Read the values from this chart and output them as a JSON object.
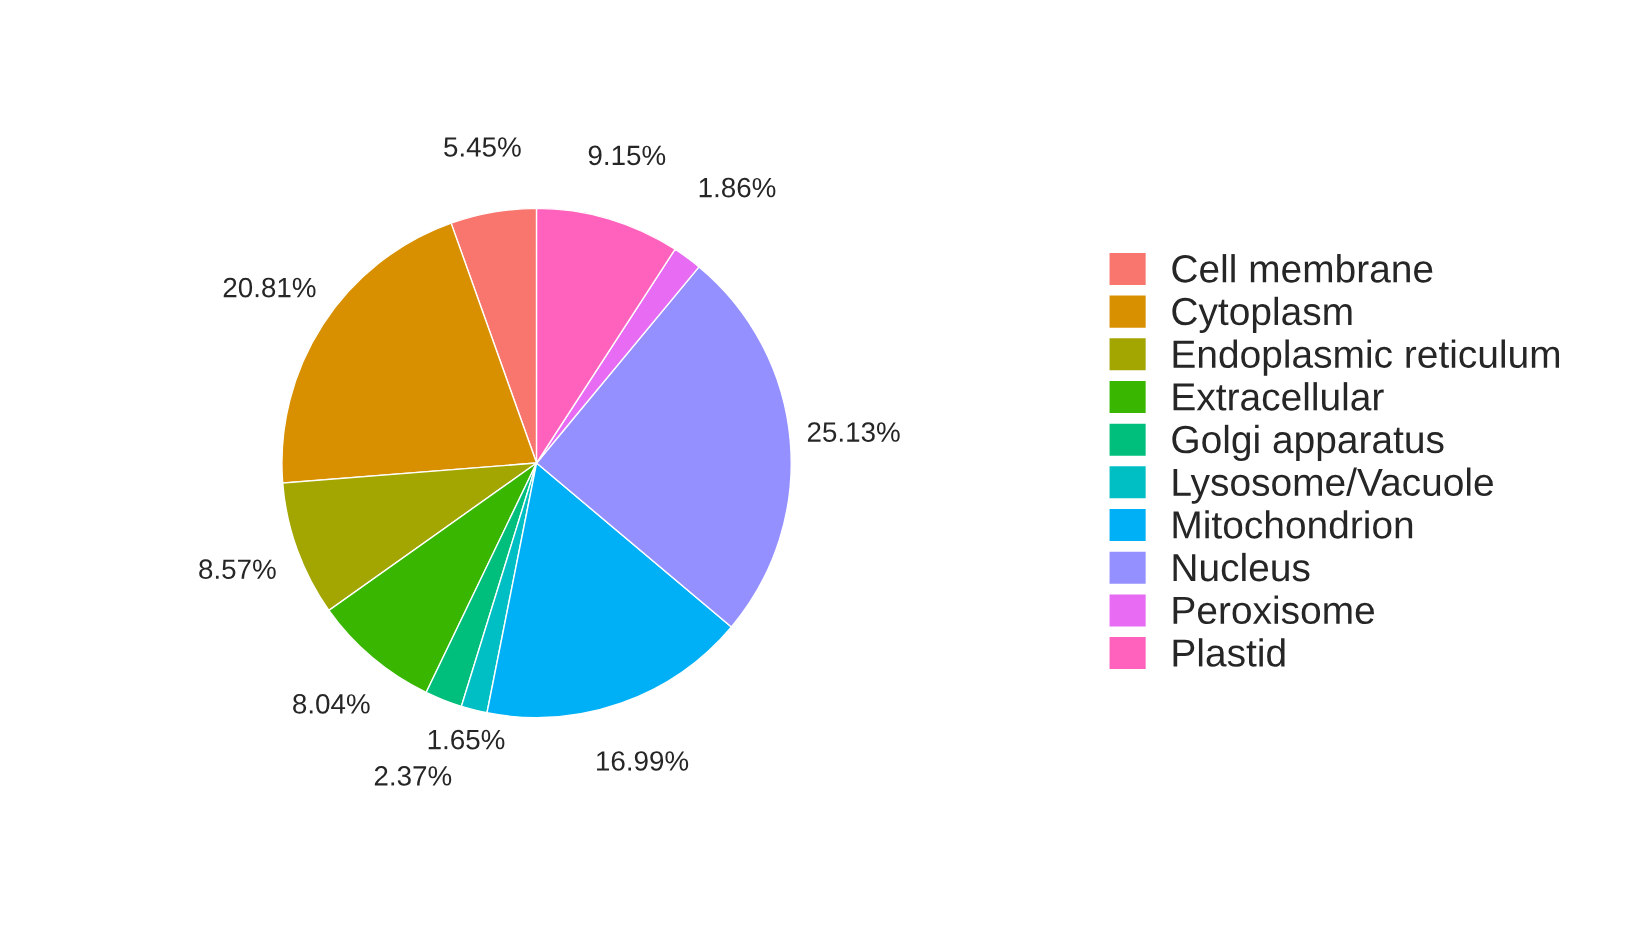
{
  "chart_data": {
    "type": "pie",
    "categories": [
      "Cell membrane",
      "Cytoplasm",
      "Endoplasmic reticulum",
      "Extracellular",
      "Golgi apparatus",
      "Lysosome/Vacuole",
      "Mitochondrion",
      "Nucleus",
      "Peroxisome",
      "Plastid"
    ],
    "values": [
      5.45,
      20.81,
      8.57,
      8.04,
      2.37,
      1.65,
      16.99,
      25.13,
      1.86,
      9.15
    ],
    "colors": [
      "#f8766d",
      "#d89000",
      "#a3a500",
      "#39b600",
      "#00bf7d",
      "#00bfc4",
      "#00b0f6",
      "#9590ff",
      "#e76bf3",
      "#ff62bc"
    ],
    "value_labels": [
      "5.45%",
      "20.81%",
      "8.57%",
      "8.04%",
      "2.37%",
      "1.65%",
      "16.99%",
      "25.13%",
      "1.86%",
      "9.15%"
    ],
    "legend": "right"
  }
}
